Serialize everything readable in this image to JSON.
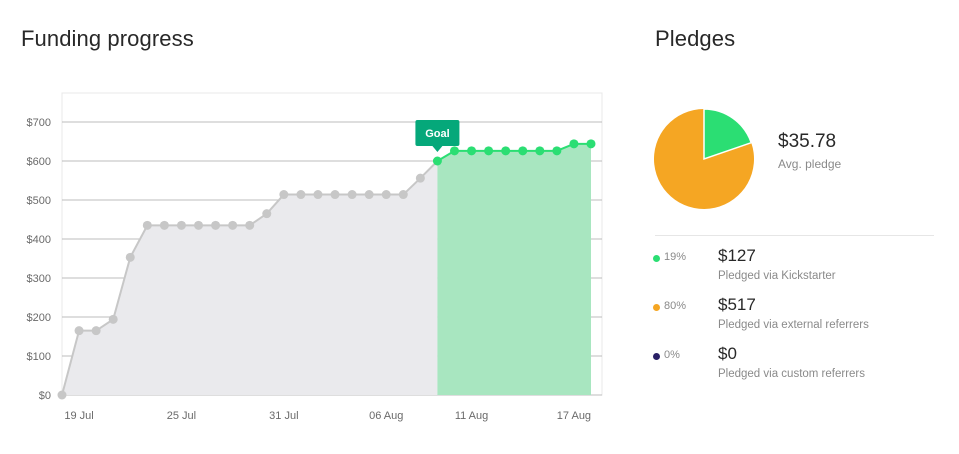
{
  "funding": {
    "title": "Funding progress"
  },
  "pledges": {
    "title": "Pledges",
    "avg_value": "$35.78",
    "avg_label": "Avg. pledge",
    "rows": [
      {
        "pct": "19%",
        "amount": "$127",
        "label": "Pledged via Kickstarter",
        "color": "#2bde73"
      },
      {
        "pct": "80%",
        "amount": "$517",
        "label": "Pledged via external referrers",
        "color": "#f5a623"
      },
      {
        "pct": "0%",
        "amount": "$0",
        "label": "Pledged via custom referrers",
        "color": "#2a2166"
      }
    ]
  },
  "colors": {
    "pre_goal_line": "#c7c7c7",
    "pre_goal_fill": "#eaeaed",
    "post_goal_line": "#2bde73",
    "post_goal_fill": "#a8e6c0",
    "goal_badge": "#05a87a",
    "pie_kickstarter": "#2bde73",
    "pie_external": "#f5a623"
  },
  "chart_data": [
    {
      "type": "line",
      "title": "Funding progress",
      "x_tick_labels": [
        "19 Jul",
        "25 Jul",
        "31 Jul",
        "06 Aug",
        "11 Aug",
        "17 Aug"
      ],
      "y_tick_labels": [
        "$0",
        "$100",
        "$200",
        "$300",
        "$400",
        "$500",
        "$600",
        "$700"
      ],
      "ylim": [
        0,
        700
      ],
      "grid": true,
      "annotation": "Goal",
      "goal_value": 600,
      "series": [
        {
          "points": [
            [
              "2023-07-18",
              0
            ],
            [
              "2023-07-19",
              165
            ],
            [
              "2023-07-20",
              165
            ],
            [
              "2023-07-21",
              194
            ],
            [
              "2023-07-22",
              353
            ],
            [
              "2023-07-23",
              435
            ],
            [
              "2023-07-24",
              435
            ],
            [
              "2023-07-25",
              435
            ],
            [
              "2023-07-26",
              435
            ],
            [
              "2023-07-27",
              435
            ],
            [
              "2023-07-28",
              435
            ],
            [
              "2023-07-29",
              435
            ],
            [
              "2023-07-30",
              465
            ],
            [
              "2023-07-31",
              514
            ],
            [
              "2023-08-01",
              514
            ],
            [
              "2023-08-02",
              514
            ],
            [
              "2023-08-03",
              514
            ],
            [
              "2023-08-04",
              514
            ],
            [
              "2023-08-05",
              514
            ],
            [
              "2023-08-06",
              514
            ],
            [
              "2023-08-07",
              514
            ],
            [
              "2023-08-08",
              556
            ],
            [
              "2023-08-09",
              600
            ],
            [
              "2023-08-10",
              626
            ],
            [
              "2023-08-11",
              626
            ],
            [
              "2023-08-12",
              626
            ],
            [
              "2023-08-13",
              626
            ],
            [
              "2023-08-14",
              626
            ],
            [
              "2023-08-15",
              626
            ],
            [
              "2023-08-16",
              626
            ],
            [
              "2023-08-17",
              644
            ],
            [
              "2023-08-18",
              644
            ]
          ]
        }
      ]
    },
    {
      "type": "pie",
      "title": "Pledges",
      "categories": [
        "Pledged via Kickstarter",
        "Pledged via external referrers",
        "Pledged via custom referrers"
      ],
      "values": [
        127,
        517,
        0
      ]
    }
  ]
}
